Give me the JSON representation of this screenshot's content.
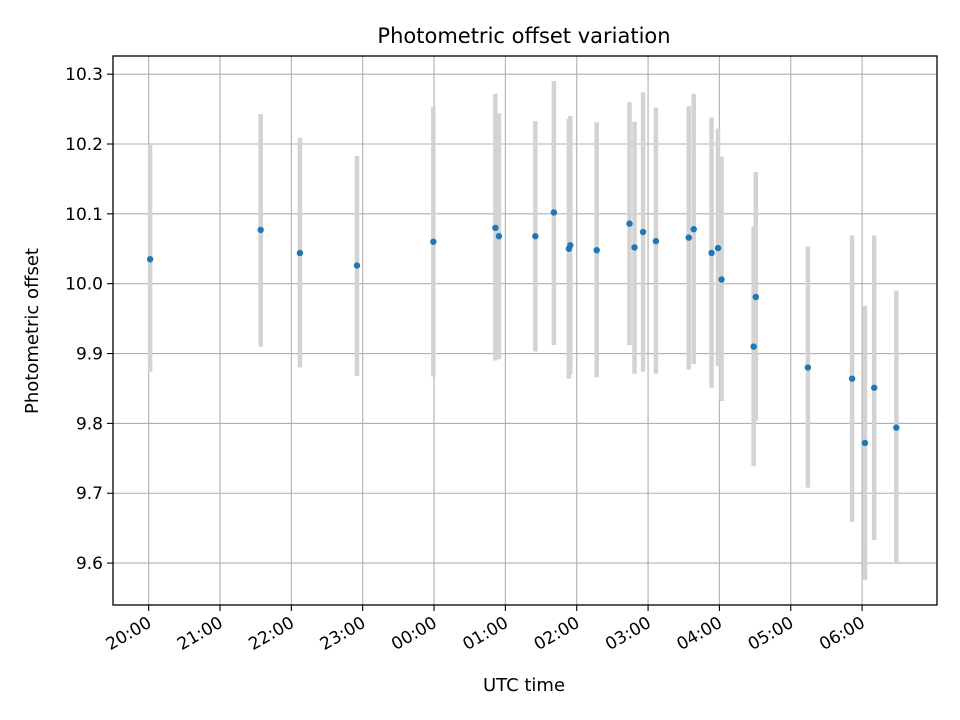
{
  "chart_data": {
    "type": "scatter",
    "title": "Photometric offset variation",
    "xlabel": "UTC time",
    "ylabel": "Photometric offset",
    "x_unit": "UTC time (hours after 00:00 on the first observing day; times after midnight are > 24)",
    "xlim": [
      19.5,
      31.05
    ],
    "ylim": [
      9.54,
      10.326
    ],
    "grid": true,
    "x_ticks": [
      {
        "value": 20,
        "label": "20:00"
      },
      {
        "value": 21,
        "label": "21:00"
      },
      {
        "value": 22,
        "label": "22:00"
      },
      {
        "value": 23,
        "label": "23:00"
      },
      {
        "value": 24,
        "label": "00:00"
      },
      {
        "value": 25,
        "label": "01:00"
      },
      {
        "value": 26,
        "label": "02:00"
      },
      {
        "value": 27,
        "label": "03:00"
      },
      {
        "value": 28,
        "label": "04:00"
      },
      {
        "value": 29,
        "label": "05:00"
      },
      {
        "value": 30,
        "label": "06:00"
      }
    ],
    "y_ticks": [
      {
        "value": 9.6,
        "label": "9.6"
      },
      {
        "value": 9.7,
        "label": "9.7"
      },
      {
        "value": 9.8,
        "label": "9.8"
      },
      {
        "value": 9.9,
        "label": "9.9"
      },
      {
        "value": 10.0,
        "label": "10.0"
      },
      {
        "value": 10.1,
        "label": "10.1"
      },
      {
        "value": 10.2,
        "label": "10.2"
      },
      {
        "value": 10.3,
        "label": "10.3"
      }
    ],
    "point_color": "#1f77b4",
    "errorbar_color": "#d3d3d3",
    "points": [
      {
        "x": 20.02,
        "y": 10.035,
        "ylow": 9.874,
        "yhigh": 10.2
      },
      {
        "x": 21.57,
        "y": 10.077,
        "ylow": 9.91,
        "yhigh": 10.243
      },
      {
        "x": 22.12,
        "y": 10.044,
        "ylow": 9.88,
        "yhigh": 10.209
      },
      {
        "x": 22.92,
        "y": 10.026,
        "ylow": 9.868,
        "yhigh": 10.183
      },
      {
        "x": 23.99,
        "y": 10.06,
        "ylow": 9.867,
        "yhigh": 10.253
      },
      {
        "x": 24.86,
        "y": 10.08,
        "ylow": 9.89,
        "yhigh": 10.272
      },
      {
        "x": 24.91,
        "y": 10.068,
        "ylow": 9.892,
        "yhigh": 10.244
      },
      {
        "x": 25.42,
        "y": 10.068,
        "ylow": 9.903,
        "yhigh": 10.233
      },
      {
        "x": 25.68,
        "y": 10.102,
        "ylow": 9.912,
        "yhigh": 10.29
      },
      {
        "x": 25.89,
        "y": 10.05,
        "ylow": 9.864,
        "yhigh": 10.236
      },
      {
        "x": 25.91,
        "y": 10.055,
        "ylow": 9.87,
        "yhigh": 10.24
      },
      {
        "x": 26.28,
        "y": 10.048,
        "ylow": 9.866,
        "yhigh": 10.231
      },
      {
        "x": 26.74,
        "y": 10.086,
        "ylow": 9.912,
        "yhigh": 10.26
      },
      {
        "x": 26.81,
        "y": 10.052,
        "ylow": 9.871,
        "yhigh": 10.232
      },
      {
        "x": 26.93,
        "y": 10.074,
        "ylow": 9.874,
        "yhigh": 10.274
      },
      {
        "x": 27.11,
        "y": 10.061,
        "ylow": 9.871,
        "yhigh": 10.252
      },
      {
        "x": 27.57,
        "y": 10.066,
        "ylow": 9.877,
        "yhigh": 10.254
      },
      {
        "x": 27.64,
        "y": 10.078,
        "ylow": 9.885,
        "yhigh": 10.272
      },
      {
        "x": 27.89,
        "y": 10.044,
        "ylow": 9.851,
        "yhigh": 10.238
      },
      {
        "x": 27.98,
        "y": 10.051,
        "ylow": 9.882,
        "yhigh": 10.222
      },
      {
        "x": 28.03,
        "y": 10.006,
        "ylow": 9.832,
        "yhigh": 10.182
      },
      {
        "x": 28.48,
        "y": 9.91,
        "ylow": 9.739,
        "yhigh": 10.082
      },
      {
        "x": 28.51,
        "y": 9.981,
        "ylow": 9.804,
        "yhigh": 10.16
      },
      {
        "x": 29.24,
        "y": 9.88,
        "ylow": 9.708,
        "yhigh": 10.053
      },
      {
        "x": 29.86,
        "y": 9.864,
        "ylow": 9.659,
        "yhigh": 10.069
      },
      {
        "x": 30.04,
        "y": 9.772,
        "ylow": 9.576,
        "yhigh": 9.968
      },
      {
        "x": 30.17,
        "y": 9.851,
        "ylow": 9.633,
        "yhigh": 10.069
      },
      {
        "x": 30.48,
        "y": 9.794,
        "ylow": 9.6,
        "yhigh": 9.99
      }
    ]
  }
}
